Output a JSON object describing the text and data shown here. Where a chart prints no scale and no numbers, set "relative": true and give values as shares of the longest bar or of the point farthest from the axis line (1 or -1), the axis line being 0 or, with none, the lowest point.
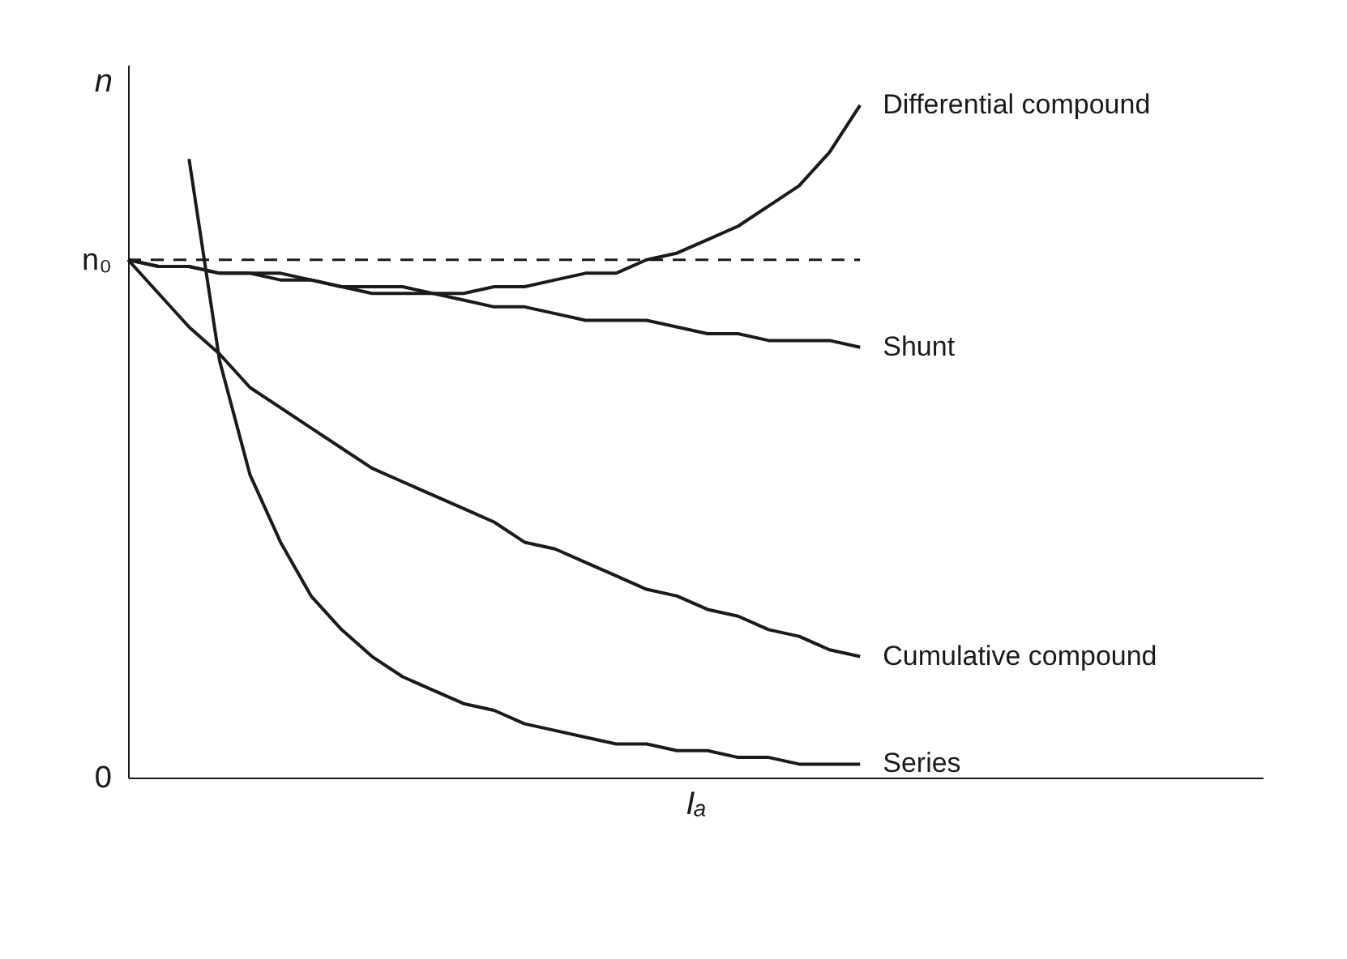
{
  "chart_data": {
    "type": "line",
    "relative": true,
    "xlabel": "Iₐ",
    "ylabel": "n",
    "legend": false,
    "marker": "none",
    "line_style": "solid",
    "categories": [
      null,
      null,
      null,
      null,
      null,
      null,
      null,
      null,
      null,
      null,
      null,
      null,
      null,
      null,
      null,
      null,
      null,
      null,
      null,
      null,
      null,
      null,
      null,
      null,
      null
    ],
    "series": [
      {
        "name": "Differential compound",
        "color": "#1a1a1a",
        "values": [
          0.77,
          0.76,
          0.76,
          0.75,
          0.75,
          0.75,
          0.74,
          0.73,
          0.73,
          0.73,
          0.72,
          0.72,
          0.73,
          0.73,
          0.74,
          0.75,
          0.75,
          0.77,
          0.78,
          0.8,
          0.82,
          0.85,
          0.88,
          0.93,
          1.0
        ]
      },
      {
        "name": "Shunt",
        "color": "#1a1a1a",
        "values": [
          0.77,
          0.76,
          0.76,
          0.75,
          0.75,
          0.74,
          0.74,
          0.73,
          0.72,
          0.72,
          0.72,
          0.71,
          0.7,
          0.7,
          0.69,
          0.68,
          0.68,
          0.68,
          0.67,
          0.66,
          0.66,
          0.65,
          0.65,
          0.65,
          0.64
        ]
      },
      {
        "name": "Cumulative compound",
        "color": "#1a1a1a",
        "values": [
          0.77,
          0.72,
          0.67,
          0.63,
          0.58,
          0.55,
          0.52,
          0.49,
          0.46,
          0.44,
          0.42,
          0.4,
          0.38,
          0.35,
          0.34,
          0.32,
          0.3,
          0.28,
          0.27,
          0.25,
          0.24,
          0.22,
          0.21,
          0.19,
          0.18
        ]
      },
      {
        "name": "Series",
        "color": "#1a1a1a",
        "values": [
          null,
          null,
          0.92,
          0.62,
          0.45,
          0.35,
          0.27,
          0.22,
          0.18,
          0.15,
          0.13,
          0.11,
          0.1,
          0.08,
          0.07,
          0.06,
          0.05,
          0.05,
          0.04,
          0.04,
          0.03,
          0.03,
          0.02,
          0.02,
          0.02
        ]
      }
    ],
    "ref_lines": [
      {
        "axis": "y",
        "value": 0.77,
        "label": "n₀",
        "line_style": "dashed",
        "color": "#1a1a1a"
      }
    ],
    "annotations": [
      "0"
    ]
  }
}
